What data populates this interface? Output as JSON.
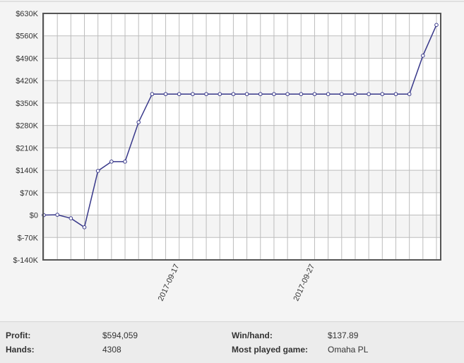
{
  "chart_data": {
    "type": "line",
    "x": [
      "2017-09-07",
      "2017-09-08",
      "2017-09-09",
      "2017-09-10",
      "2017-09-11",
      "2017-09-12",
      "2017-09-13",
      "2017-09-14",
      "2017-09-15",
      "2017-09-16",
      "2017-09-17",
      "2017-09-18",
      "2017-09-19",
      "2017-09-20",
      "2017-09-21",
      "2017-09-22",
      "2017-09-23",
      "2017-09-24",
      "2017-09-25",
      "2017-09-26",
      "2017-09-27",
      "2017-09-28",
      "2017-09-29",
      "2017-09-30",
      "2017-10-01",
      "2017-10-02",
      "2017-10-03",
      "2017-10-04",
      "2017-10-05",
      "2017-10-06"
    ],
    "series": [
      {
        "color": "#38388a",
        "values": [
          0,
          1000,
          -10000,
          -38000,
          138000,
          167000,
          167000,
          290000,
          378000,
          378000,
          378000,
          378000,
          378000,
          378000,
          378000,
          378000,
          378000,
          378000,
          378000,
          378000,
          378000,
          378000,
          378000,
          378000,
          378000,
          378000,
          378000,
          378000,
          498000,
          594000
        ]
      }
    ],
    "xlim": [
      "2017-09-07",
      "2017-10-06"
    ],
    "xticks": [
      "2017-09-17",
      "2017-09-27"
    ],
    "ylim": [
      -140000,
      630000
    ],
    "yticks": [
      {
        "value": -140000,
        "label": "$-140K"
      },
      {
        "value": -70000,
        "label": "$-70K"
      },
      {
        "value": 0,
        "label": "$0"
      },
      {
        "value": 70000,
        "label": "$70K"
      },
      {
        "value": 140000,
        "label": "$140K"
      },
      {
        "value": 210000,
        "label": "$210K"
      },
      {
        "value": 280000,
        "label": "$280K"
      },
      {
        "value": 350000,
        "label": "$350K"
      },
      {
        "value": 420000,
        "label": "$420K"
      },
      {
        "value": 490000,
        "label": "$490K"
      },
      {
        "value": 560000,
        "label": "$560K"
      },
      {
        "value": 630000,
        "label": "$630K"
      }
    ],
    "grid": true
  },
  "stats": {
    "rows": [
      [
        "Profit:",
        "$594,059",
        "Win/hand:",
        "$137.89"
      ],
      [
        "Hands:",
        "4308",
        "Most played game:",
        "Omaha PL"
      ]
    ]
  }
}
